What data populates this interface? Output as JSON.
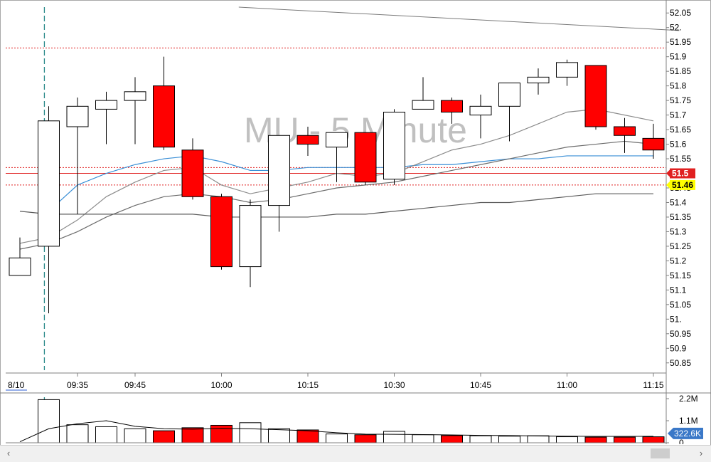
{
  "chart_data": {
    "type": "candlestick",
    "title": "MU - 5 Minute",
    "date_label": "8/10",
    "price_axis": {
      "ylim": [
        50.825,
        52.075
      ],
      "ticks": [
        "52.05",
        "52.",
        "51.95",
        "51.9",
        "51.85",
        "51.8",
        "51.75",
        "51.7",
        "51.65",
        "51.6",
        "51.55",
        "51.5",
        "51.45",
        "51.4",
        "51.35",
        "51.3",
        "51.25",
        "51.2",
        "51.15",
        "51.1",
        "51.05",
        "51.",
        "50.95",
        "50.9",
        "50.85"
      ]
    },
    "time_ticks": [
      {
        "label": "09:35",
        "at": 2
      },
      {
        "label": "09:45",
        "at": 4
      },
      {
        "label": "10:00",
        "at": 7
      },
      {
        "label": "10:15",
        "at": 10
      },
      {
        "label": "10:30",
        "at": 13
      },
      {
        "label": "10:45",
        "at": 16
      },
      {
        "label": "11:00",
        "at": 19
      },
      {
        "label": "11:15",
        "at": 22
      }
    ],
    "candles": [
      {
        "o": 51.15,
        "h": 51.28,
        "l": 51.15,
        "c": 51.21
      },
      {
        "o": 51.25,
        "h": 51.73,
        "l": 51.02,
        "c": 51.68
      },
      {
        "o": 51.66,
        "h": 51.76,
        "l": 51.36,
        "c": 51.73
      },
      {
        "o": 51.72,
        "h": 51.78,
        "l": 51.6,
        "c": 51.75
      },
      {
        "o": 51.75,
        "h": 51.83,
        "l": 51.6,
        "c": 51.78
      },
      {
        "o": 51.8,
        "h": 51.9,
        "l": 51.58,
        "c": 51.59
      },
      {
        "o": 51.58,
        "h": 51.62,
        "l": 51.41,
        "c": 51.42
      },
      {
        "o": 51.42,
        "h": 51.43,
        "l": 51.17,
        "c": 51.18
      },
      {
        "o": 51.18,
        "h": 51.41,
        "l": 51.11,
        "c": 51.39
      },
      {
        "o": 51.39,
        "h": 51.63,
        "l": 51.3,
        "c": 51.63
      },
      {
        "o": 51.63,
        "h": 51.66,
        "l": 51.56,
        "c": 51.6
      },
      {
        "o": 51.59,
        "h": 51.64,
        "l": 51.47,
        "c": 51.64
      },
      {
        "o": 51.64,
        "h": 51.64,
        "l": 51.46,
        "c": 51.47
      },
      {
        "o": 51.48,
        "h": 51.72,
        "l": 51.46,
        "c": 51.71
      },
      {
        "o": 51.72,
        "h": 51.83,
        "l": 51.72,
        "c": 51.75
      },
      {
        "o": 51.75,
        "h": 51.76,
        "l": 51.67,
        "c": 51.71
      },
      {
        "o": 51.7,
        "h": 51.77,
        "l": 51.62,
        "c": 51.73
      },
      {
        "o": 51.73,
        "h": 51.81,
        "l": 51.61,
        "c": 51.81
      },
      {
        "o": 51.81,
        "h": 51.86,
        "l": 51.77,
        "c": 51.83
      },
      {
        "o": 51.83,
        "h": 51.89,
        "l": 51.8,
        "c": 51.88
      },
      {
        "o": 51.87,
        "h": 51.87,
        "l": 51.65,
        "c": 51.66
      },
      {
        "o": 51.66,
        "h": 51.69,
        "l": 51.57,
        "c": 51.63
      },
      {
        "o": 51.62,
        "h": 51.67,
        "l": 51.55,
        "c": 51.58
      }
    ],
    "overlay_lines": [
      {
        "color": "#3a8fd6",
        "values": [
          null,
          51.37,
          51.46,
          51.5,
          51.53,
          51.55,
          51.56,
          51.54,
          51.51,
          51.51,
          51.52,
          51.52,
          51.52,
          51.52,
          51.53,
          51.53,
          51.54,
          51.55,
          51.55,
          51.56,
          51.56,
          51.56,
          51.56
        ]
      },
      {
        "color": "#8c8c8c",
        "values": [
          51.26,
          51.28,
          51.34,
          51.42,
          51.47,
          51.51,
          51.52,
          51.46,
          51.43,
          51.45,
          51.47,
          51.5,
          51.49,
          51.5,
          51.54,
          51.58,
          51.6,
          51.63,
          51.67,
          51.71,
          51.72,
          51.7,
          51.68
        ]
      },
      {
        "color": "#6c6c6c",
        "values": [
          51.24,
          51.26,
          51.3,
          51.35,
          51.39,
          51.42,
          51.43,
          51.42,
          51.4,
          51.41,
          51.43,
          51.45,
          51.46,
          51.47,
          51.49,
          51.51,
          51.53,
          51.55,
          51.57,
          51.59,
          51.6,
          51.61,
          51.6
        ]
      },
      {
        "color": "#5a5a5a",
        "values": [
          51.37,
          51.36,
          51.36,
          51.36,
          51.36,
          51.36,
          51.36,
          51.35,
          51.35,
          51.35,
          51.35,
          51.36,
          51.36,
          51.37,
          51.38,
          51.39,
          51.4,
          51.4,
          51.41,
          51.42,
          51.43,
          51.43,
          51.43
        ]
      }
    ],
    "trend_line": {
      "color": "#7a7a7a",
      "from": {
        "at": 7.6,
        "y": 52.07
      },
      "to": {
        "at": 22.9,
        "y": 51.99
      }
    },
    "h_levels": [
      {
        "y": 51.93,
        "color": "#e02020",
        "style": "dotted"
      },
      {
        "y": 51.52,
        "color": "#e02020",
        "style": "dotted"
      },
      {
        "y": 51.5,
        "color": "#e02020",
        "style": "solid"
      },
      {
        "y": 51.46,
        "color": "#e02020",
        "style": "dotted"
      }
    ],
    "price_tags": [
      {
        "label": "51.5",
        "y": 51.5,
        "bg": "#e02020",
        "fg": "#ffffff"
      },
      {
        "label": "51.46",
        "y": 51.46,
        "bg": "#ffff00",
        "fg": "#000000"
      }
    ],
    "session_marker": {
      "at": 0.85,
      "color": "#2a8a8a"
    },
    "volume": {
      "ylim": [
        0,
        2200000
      ],
      "ticks": [
        "2.2M",
        "1.1M",
        "0"
      ],
      "bars": [
        0,
        2150000,
        900000,
        800000,
        700000,
        600000,
        750000,
        870000,
        1000000,
        700000,
        640000,
        440000,
        400000,
        570000,
        400000,
        360000,
        350000,
        330000,
        350000,
        300000,
        280000,
        280000,
        300000
      ],
      "avg_line": [
        50000,
        700000,
        950000,
        1100000,
        820000,
        700000,
        680000,
        720000,
        700000,
        650000,
        600000,
        500000,
        430000,
        420000,
        410000,
        390000,
        370000,
        360000,
        340000,
        330000,
        320000,
        320000,
        322600
      ],
      "current_tag": "322.6K",
      "tag_color": "#3a78c8"
    },
    "colors": {
      "up_fill": "#ffffff",
      "down_fill": "#ff0000",
      "candle_edge": "#000000",
      "grid_axis": "#808080",
      "watermark": "#c0c0c0"
    }
  }
}
